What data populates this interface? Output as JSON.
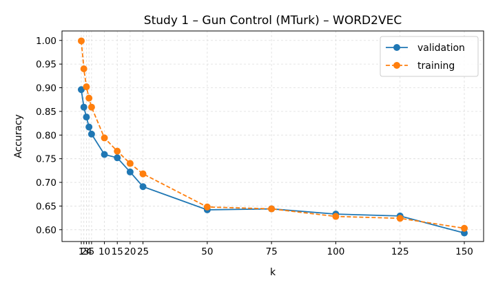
{
  "chart_data": {
    "type": "line",
    "title": "Study 1 – Gun Control (MTurk) – WORD2VEC",
    "xlabel": "k",
    "ylabel": "Accuracy",
    "x": [
      1,
      2,
      3,
      4,
      5,
      10,
      15,
      20,
      25,
      50,
      75,
      100,
      125,
      150
    ],
    "xticks": [
      1,
      2,
      3,
      4,
      5,
      10,
      15,
      20,
      25,
      50,
      75,
      100,
      125,
      150
    ],
    "xtick_labels": [
      "1",
      "2",
      "3",
      "4",
      "5",
      "10",
      "15",
      "20",
      "25",
      "50",
      "75",
      "100",
      "125",
      "150"
    ],
    "xlim": [
      -6.5,
      157.5
    ],
    "ylim": [
      0.575,
      1.02
    ],
    "yticks": [
      0.6,
      0.65,
      0.7,
      0.75,
      0.8,
      0.85,
      0.9,
      0.95,
      1.0
    ],
    "ytick_labels": [
      "0.60",
      "0.65",
      "0.70",
      "0.75",
      "0.80",
      "0.85",
      "0.90",
      "0.95",
      "1.00"
    ],
    "grid": true,
    "legend_position": "top-right",
    "series": [
      {
        "name": "validation",
        "color": "#1f77b4",
        "linestyle": "solid",
        "values": [
          0.896,
          0.859,
          0.838,
          0.817,
          0.802,
          0.759,
          0.752,
          0.722,
          0.691,
          0.642,
          0.644,
          0.633,
          0.629,
          0.593
        ]
      },
      {
        "name": "training",
        "color": "#ff7f0e",
        "linestyle": "dashed",
        "values": [
          0.999,
          0.94,
          0.902,
          0.878,
          0.859,
          0.794,
          0.766,
          0.74,
          0.718,
          0.648,
          0.644,
          0.628,
          0.624,
          0.603
        ]
      }
    ]
  }
}
